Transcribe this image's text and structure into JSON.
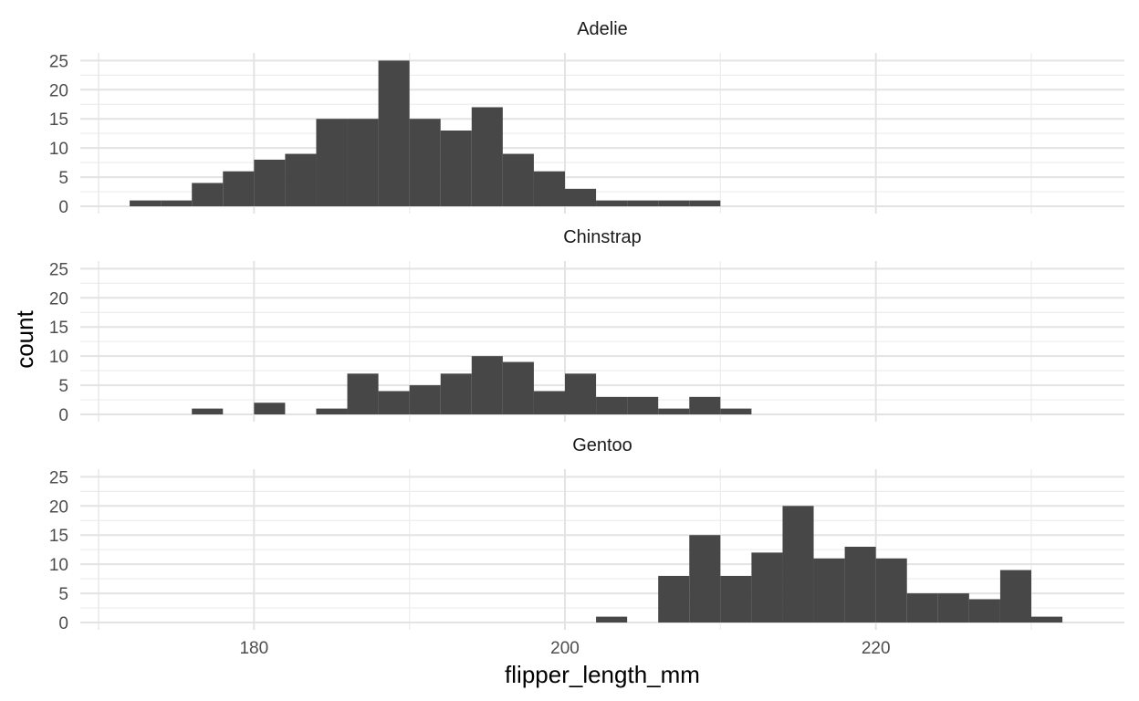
{
  "chart_data": {
    "type": "bar",
    "xlabel": "flipper_length_mm",
    "ylabel": "count",
    "xlim": [
      170,
      235
    ],
    "ylim": [
      0,
      26
    ],
    "xticks": [
      180,
      200,
      220
    ],
    "xtick_labels": [
      "180",
      "200",
      "220"
    ],
    "yticks": [
      0,
      5,
      10,
      15,
      20,
      25
    ],
    "ytick_labels": [
      "0",
      "5",
      "10",
      "15",
      "20",
      "25"
    ],
    "grid": true,
    "bar_color": "#474747",
    "panels": [
      {
        "name": "Adelie",
        "bins": [
          {
            "x0": 172,
            "x1": 174,
            "count": 1
          },
          {
            "x0": 174,
            "x1": 176,
            "count": 1
          },
          {
            "x0": 176,
            "x1": 178,
            "count": 4
          },
          {
            "x0": 178,
            "x1": 180,
            "count": 6
          },
          {
            "x0": 180,
            "x1": 182,
            "count": 8
          },
          {
            "x0": 182,
            "x1": 184,
            "count": 9
          },
          {
            "x0": 184,
            "x1": 186,
            "count": 15
          },
          {
            "x0": 186,
            "x1": 188,
            "count": 15
          },
          {
            "x0": 188,
            "x1": 190,
            "count": 25
          },
          {
            "x0": 190,
            "x1": 192,
            "count": 15
          },
          {
            "x0": 192,
            "x1": 194,
            "count": 13
          },
          {
            "x0": 194,
            "x1": 196,
            "count": 17
          },
          {
            "x0": 196,
            "x1": 198,
            "count": 9
          },
          {
            "x0": 198,
            "x1": 200,
            "count": 6
          },
          {
            "x0": 200,
            "x1": 202,
            "count": 3
          },
          {
            "x0": 202,
            "x1": 204,
            "count": 1
          },
          {
            "x0": 204,
            "x1": 206,
            "count": 1
          },
          {
            "x0": 206,
            "x1": 208,
            "count": 1
          },
          {
            "x0": 208,
            "x1": 210,
            "count": 1
          }
        ]
      },
      {
        "name": "Chinstrap",
        "bins": [
          {
            "x0": 176,
            "x1": 178,
            "count": 1
          },
          {
            "x0": 180,
            "x1": 182,
            "count": 2
          },
          {
            "x0": 184,
            "x1": 186,
            "count": 1
          },
          {
            "x0": 186,
            "x1": 188,
            "count": 7
          },
          {
            "x0": 188,
            "x1": 190,
            "count": 4
          },
          {
            "x0": 190,
            "x1": 192,
            "count": 5
          },
          {
            "x0": 192,
            "x1": 194,
            "count": 7
          },
          {
            "x0": 194,
            "x1": 196,
            "count": 10
          },
          {
            "x0": 196,
            "x1": 198,
            "count": 9
          },
          {
            "x0": 198,
            "x1": 200,
            "count": 4
          },
          {
            "x0": 200,
            "x1": 202,
            "count": 7
          },
          {
            "x0": 202,
            "x1": 204,
            "count": 3
          },
          {
            "x0": 204,
            "x1": 206,
            "count": 3
          },
          {
            "x0": 206,
            "x1": 208,
            "count": 1
          },
          {
            "x0": 208,
            "x1": 210,
            "count": 3
          },
          {
            "x0": 210,
            "x1": 212,
            "count": 1
          }
        ]
      },
      {
        "name": "Gentoo",
        "bins": [
          {
            "x0": 202,
            "x1": 204,
            "count": 1
          },
          {
            "x0": 206,
            "x1": 208,
            "count": 8
          },
          {
            "x0": 208,
            "x1": 210,
            "count": 15
          },
          {
            "x0": 210,
            "x1": 212,
            "count": 8
          },
          {
            "x0": 212,
            "x1": 214,
            "count": 12
          },
          {
            "x0": 214,
            "x1": 216,
            "count": 20
          },
          {
            "x0": 216,
            "x1": 218,
            "count": 11
          },
          {
            "x0": 218,
            "x1": 220,
            "count": 13
          },
          {
            "x0": 220,
            "x1": 222,
            "count": 11
          },
          {
            "x0": 222,
            "x1": 224,
            "count": 5
          },
          {
            "x0": 224,
            "x1": 226,
            "count": 5
          },
          {
            "x0": 226,
            "x1": 228,
            "count": 4
          },
          {
            "x0": 228,
            "x1": 230,
            "count": 9
          },
          {
            "x0": 230,
            "x1": 232,
            "count": 1
          }
        ]
      }
    ]
  }
}
